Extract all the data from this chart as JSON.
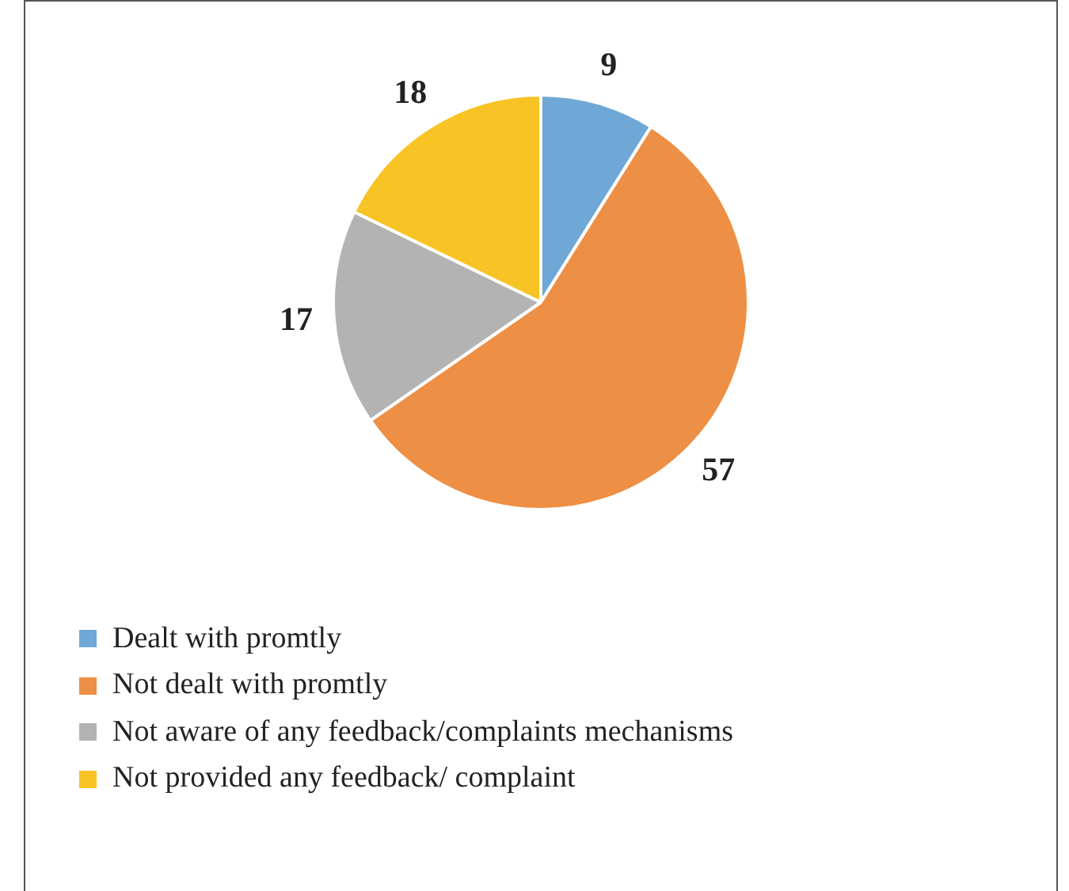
{
  "chart_data": {
    "type": "pie",
    "categories": [
      "Dealt with promtly",
      "Not dealt with promtly",
      "Not aware of any feedback/complaints mechanisms",
      "Not provided any feedback/ complaint"
    ],
    "values": [
      9,
      57,
      17,
      18
    ],
    "colors": [
      "#6fa8d6",
      "#ed8f45",
      "#b3b3b3",
      "#f8c324"
    ],
    "data_labels": true,
    "legend": "bottom"
  }
}
